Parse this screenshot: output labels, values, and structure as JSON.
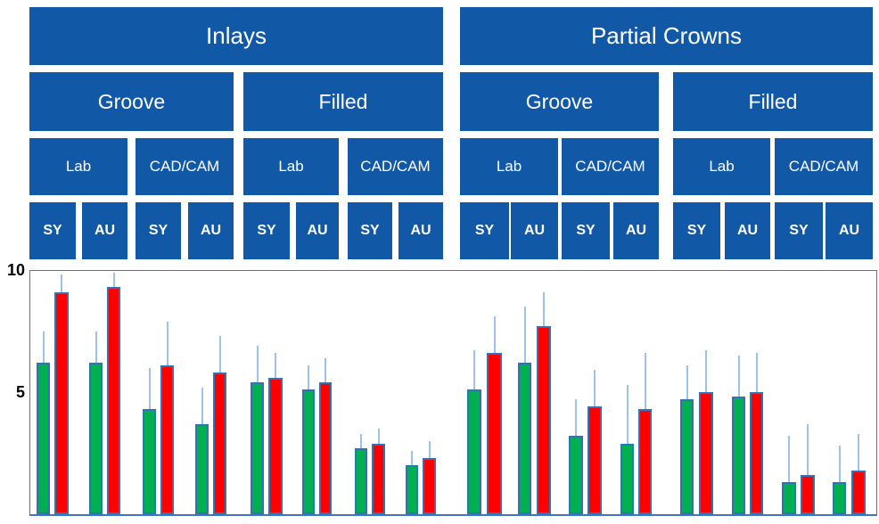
{
  "figure": {
    "description_labels": {
      "level1": [
        "Inlays",
        "Partial Crowns"
      ],
      "level2": [
        "Groove",
        "Filled",
        "Groove",
        "Filled"
      ],
      "level3": [
        "Lab",
        "CAD/CAM",
        "Lab",
        "CAD/CAM",
        "Lab",
        "CAD/CAM",
        "Lab",
        "CAD/CAM"
      ],
      "level4": [
        "SY",
        "AU",
        "SY",
        "AU",
        "SY",
        "AU",
        "SY",
        "AU",
        "SY",
        "AU",
        "SY",
        "AU",
        "SY",
        "AU",
        "SY",
        "AU"
      ]
    }
  },
  "y_axis": {
    "ticks": [
      {
        "value": 10,
        "label": "10"
      },
      {
        "value": 5,
        "label": "5"
      }
    ],
    "min": 0,
    "max": 10
  },
  "colors": {
    "header_blue": "#1159A6",
    "bar_green": "#00B050",
    "bar_red": "#FF0000",
    "bar_border_blue": "#2E75B6",
    "whisker_light_blue": "#9DC3E6",
    "plot_border_blue": "#4472C4",
    "header_text": "#FFFFFF",
    "tick_text": "#000000"
  },
  "chart_data": {
    "type": "bar",
    "title": "",
    "xlabel": "",
    "ylabel": "",
    "ylim": [
      0,
      10
    ],
    "y_tick_values": [
      10,
      5
    ],
    "grid": false,
    "legend": null,
    "error_bars": "upper-only whiskers, light blue, no caps",
    "categories": [
      "Inlays/Groove/Lab/SY",
      "Inlays/Groove/Lab/AU",
      "Inlays/Groove/CAD/CAM/SY",
      "Inlays/Groove/CAD/CAM/AU",
      "Inlays/Filled/Lab/SY",
      "Inlays/Filled/Lab/AU",
      "Inlays/Filled/CAD/CAM/SY",
      "Inlays/Filled/CAD/CAM/AU",
      "Partial Crowns/Groove/Lab/SY",
      "Partial Crowns/Groove/Lab/AU",
      "Partial Crowns/Groove/CAD/CAM/SY",
      "Partial Crowns/Groove/CAD/CAM/AU",
      "Partial Crowns/Filled/Lab/SY",
      "Partial Crowns/Filled/Lab/AU",
      "Partial Crowns/Filled/CAD/CAM/SY",
      "Partial Crowns/Filled/CAD/CAM/AU"
    ],
    "series": [
      {
        "name": "green",
        "color": "#00B050",
        "values": [
          6.2,
          6.2,
          4.3,
          3.7,
          5.4,
          5.1,
          2.7,
          2.0,
          5.1,
          6.2,
          3.2,
          2.9,
          4.7,
          4.8,
          1.3,
          1.3
        ],
        "errors_up": [
          1.3,
          1.3,
          1.7,
          1.5,
          1.5,
          1.0,
          0.6,
          0.6,
          1.6,
          2.3,
          1.5,
          2.4,
          1.4,
          1.7,
          1.9,
          1.5
        ]
      },
      {
        "name": "red",
        "color": "#FF0000",
        "values": [
          9.1,
          9.3,
          6.1,
          5.8,
          5.6,
          5.4,
          2.9,
          2.3,
          6.6,
          7.7,
          4.4,
          4.3,
          5.0,
          5.0,
          1.6,
          1.8
        ],
        "errors_up": [
          0.7,
          0.6,
          1.8,
          1.5,
          1.0,
          1.0,
          0.6,
          0.7,
          1.5,
          1.4,
          1.5,
          2.3,
          1.7,
          1.6,
          2.1,
          1.5
        ]
      }
    ]
  }
}
